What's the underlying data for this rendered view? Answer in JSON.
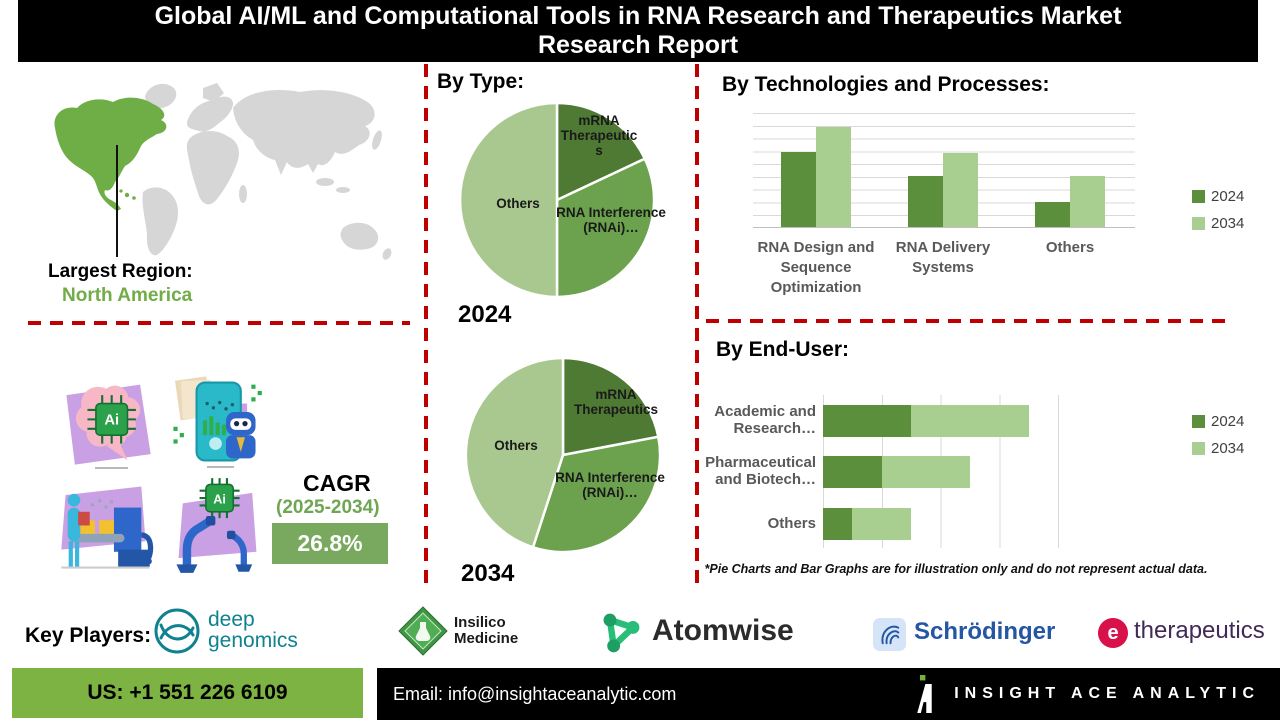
{
  "title": "Global AI/ML and Computational Tools in RNA Research and Therapeutics Market Research Report",
  "region": {
    "label": "Largest Region:",
    "value": "North America"
  },
  "cagr": {
    "label": "CAGR",
    "period": "(2025-2034)",
    "value": "26.8%"
  },
  "headings": {
    "by_type": "By Type:",
    "by_tech": "By Technologies and Processes:",
    "by_end_user": "By End-User:"
  },
  "disclaimer": "*Pie Charts and Bar Graphs are for illustration only and do not represent actual data.",
  "illustrations": {
    "chip_label": "Ai"
  },
  "key_players": {
    "label": "Key Players:",
    "companies": [
      "Deep Genomics",
      "Insilico Medicine",
      "Atomwise",
      "Schrödinger",
      "e-therapeutics"
    ]
  },
  "logos": {
    "deep_genomics_line1": "deep",
    "deep_genomics_line2": "genomics",
    "insilico_line1": "Insilico",
    "insilico_line2": "Medicine",
    "atomwise": "Atomwise",
    "schrodinger": "Schrödinger",
    "etx_e": "e",
    "etx_text": "therapeutics"
  },
  "footer": {
    "phone": "US: +1 551 226 6109",
    "email": "Email: info@insightaceanalytic.com",
    "brand": "INSIGHT ACE ANALYTIC"
  },
  "colors": {
    "pie_dark": "#4e7a33",
    "pie_mid": "#6ca24e",
    "pie_light": "#a9c88f",
    "bar_2024": "#5b8f3c",
    "bar_2034": "#a9cf90",
    "highlight_green": "#70ad47",
    "cagr_box_green": "#78a95e",
    "footer_green": "#7cb342",
    "dashed_red": "#c00000",
    "title_bg": "#000000"
  },
  "chart_data": [
    {
      "id": "pie-2024",
      "type": "pie",
      "year_label": "2024",
      "title": "By Type:",
      "slices": [
        {
          "label": "mRNA Therapeutics",
          "value": 18,
          "color": "#4e7a33"
        },
        {
          "label": "RNA Interference (RNAi)…",
          "value": 32,
          "color": "#6ca24e"
        },
        {
          "label": "Others",
          "value": 50,
          "color": "#a9c88f"
        }
      ]
    },
    {
      "id": "pie-2034",
      "type": "pie",
      "year_label": "2034",
      "title": "By Type:",
      "slices": [
        {
          "label": "mRNA Therapeutics",
          "value": 22,
          "color": "#4e7a33"
        },
        {
          "label": "RNA Interference (RNAi)…",
          "value": 33,
          "color": "#6ca24e"
        },
        {
          "label": "Others",
          "value": 45,
          "color": "#a9c88f"
        }
      ]
    },
    {
      "id": "technologies",
      "type": "bar",
      "title": "By Technologies and Processes:",
      "categories": [
        "RNA Design and Sequence Optimization",
        "RNA Delivery Systems",
        "Others"
      ],
      "series": [
        {
          "name": "2024",
          "color": "#5b8f3c",
          "values": [
            65,
            44,
            22
          ]
        },
        {
          "name": "2034",
          "color": "#a9cf90",
          "values": [
            87,
            64,
            44
          ]
        }
      ],
      "ylim": [
        0,
        100
      ],
      "grid": true,
      "legend_position": "right"
    },
    {
      "id": "end-user",
      "type": "bar-horizontal-stacked",
      "title": "By End-User:",
      "categories": [
        "Academic and Research…",
        "Pharmaceutical and Biotech…",
        "Others"
      ],
      "series": [
        {
          "name": "2024",
          "color": "#5b8f3c",
          "values": [
            1.5,
            1.0,
            0.5
          ]
        },
        {
          "name": "2034",
          "color": "#a9cf90",
          "values": [
            2.0,
            1.5,
            1.0
          ]
        }
      ],
      "xlim": [
        0,
        4.5
      ],
      "grid": true,
      "legend_position": "right"
    }
  ]
}
